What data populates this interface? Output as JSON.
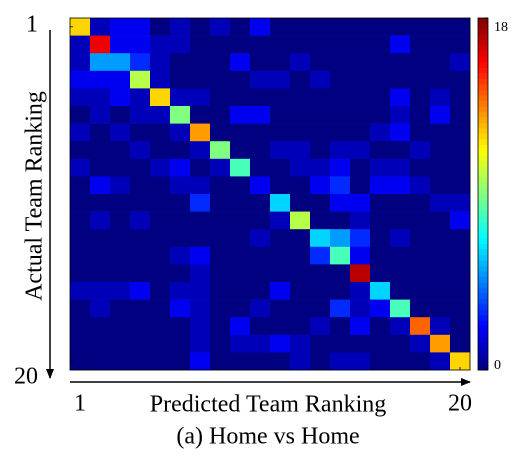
{
  "chart_data": {
    "type": "heatmap",
    "title": "(a) Home vs Home",
    "x_label": "Predicted Team Ranking",
    "y_label": "Actual Team Ranking",
    "xticks": [
      1,
      20
    ],
    "yticks": [
      1,
      20
    ],
    "zlim": [
      0,
      18
    ],
    "zticks": [
      0,
      18
    ],
    "colormap": "jet",
    "values": [
      [
        12,
        1,
        2,
        2,
        0,
        1,
        0,
        1,
        0,
        2,
        0,
        0,
        0,
        0,
        0,
        0,
        0,
        0,
        0,
        0
      ],
      [
        1,
        16,
        2,
        2,
        1,
        1,
        0,
        0,
        0,
        0,
        0,
        0,
        0,
        0,
        0,
        0,
        2,
        0,
        0,
        0
      ],
      [
        1,
        5,
        5,
        3,
        1,
        0,
        0,
        0,
        2,
        0,
        0,
        1,
        0,
        0,
        0,
        0,
        0,
        0,
        0,
        1
      ],
      [
        2,
        2,
        2,
        10,
        1,
        0,
        0,
        0,
        0,
        1,
        1,
        0,
        1,
        0,
        0,
        0,
        0,
        0,
        0,
        0
      ],
      [
        1,
        1,
        2,
        1,
        12,
        1,
        1,
        0,
        0,
        0,
        0,
        0,
        0,
        0,
        0,
        0,
        2,
        0,
        1,
        0
      ],
      [
        0,
        1,
        0,
        1,
        1,
        9,
        0,
        0,
        2,
        2,
        0,
        0,
        0,
        0,
        0,
        0,
        1,
        0,
        2,
        0
      ],
      [
        1,
        0,
        1,
        0,
        0,
        1,
        13,
        0,
        0,
        0,
        0,
        0,
        0,
        0,
        0,
        1,
        2,
        0,
        0,
        0
      ],
      [
        0,
        0,
        0,
        1,
        0,
        0,
        1,
        9,
        0,
        0,
        1,
        1,
        0,
        1,
        1,
        0,
        0,
        1,
        0,
        0
      ],
      [
        1,
        0,
        0,
        0,
        1,
        2,
        0,
        1,
        8,
        0,
        0,
        1,
        1,
        2,
        0,
        1,
        1,
        0,
        0,
        0
      ],
      [
        0,
        2,
        1,
        0,
        0,
        1,
        1,
        0,
        0,
        2,
        0,
        0,
        2,
        3,
        0,
        2,
        2,
        1,
        0,
        0
      ],
      [
        0,
        0,
        0,
        0,
        0,
        0,
        3,
        0,
        0,
        0,
        6,
        0,
        0,
        2,
        2,
        0,
        0,
        0,
        1,
        1
      ],
      [
        0,
        1,
        0,
        1,
        0,
        0,
        0,
        0,
        0,
        0,
        1,
        10,
        0,
        0,
        1,
        0,
        0,
        0,
        0,
        2
      ],
      [
        0,
        0,
        0,
        0,
        0,
        0,
        0,
        0,
        0,
        1,
        0,
        0,
        6,
        5,
        3,
        0,
        1,
        0,
        0,
        0
      ],
      [
        0,
        0,
        0,
        0,
        0,
        1,
        2,
        0,
        0,
        0,
        0,
        0,
        3,
        8,
        2,
        0,
        0,
        0,
        0,
        0
      ],
      [
        0,
        0,
        0,
        0,
        0,
        0,
        1,
        0,
        0,
        0,
        0,
        0,
        0,
        0,
        17,
        0,
        0,
        0,
        0,
        0
      ],
      [
        1,
        1,
        1,
        2,
        0,
        1,
        1,
        0,
        0,
        0,
        2,
        0,
        0,
        0,
        1,
        6,
        0,
        0,
        0,
        0
      ],
      [
        0,
        1,
        0,
        0,
        0,
        2,
        1,
        0,
        0,
        1,
        0,
        0,
        0,
        3,
        1,
        2,
        8,
        0,
        0,
        0
      ],
      [
        0,
        0,
        0,
        0,
        0,
        0,
        1,
        0,
        2,
        0,
        0,
        0,
        1,
        0,
        2,
        0,
        1,
        14,
        1,
        0
      ],
      [
        0,
        0,
        0,
        0,
        0,
        0,
        1,
        0,
        1,
        1,
        2,
        1,
        0,
        0,
        0,
        0,
        0,
        1,
        13,
        0
      ],
      [
        0,
        0,
        0,
        0,
        0,
        0,
        2,
        0,
        0,
        0,
        0,
        1,
        0,
        1,
        1,
        0,
        0,
        0,
        1,
        12
      ]
    ]
  }
}
